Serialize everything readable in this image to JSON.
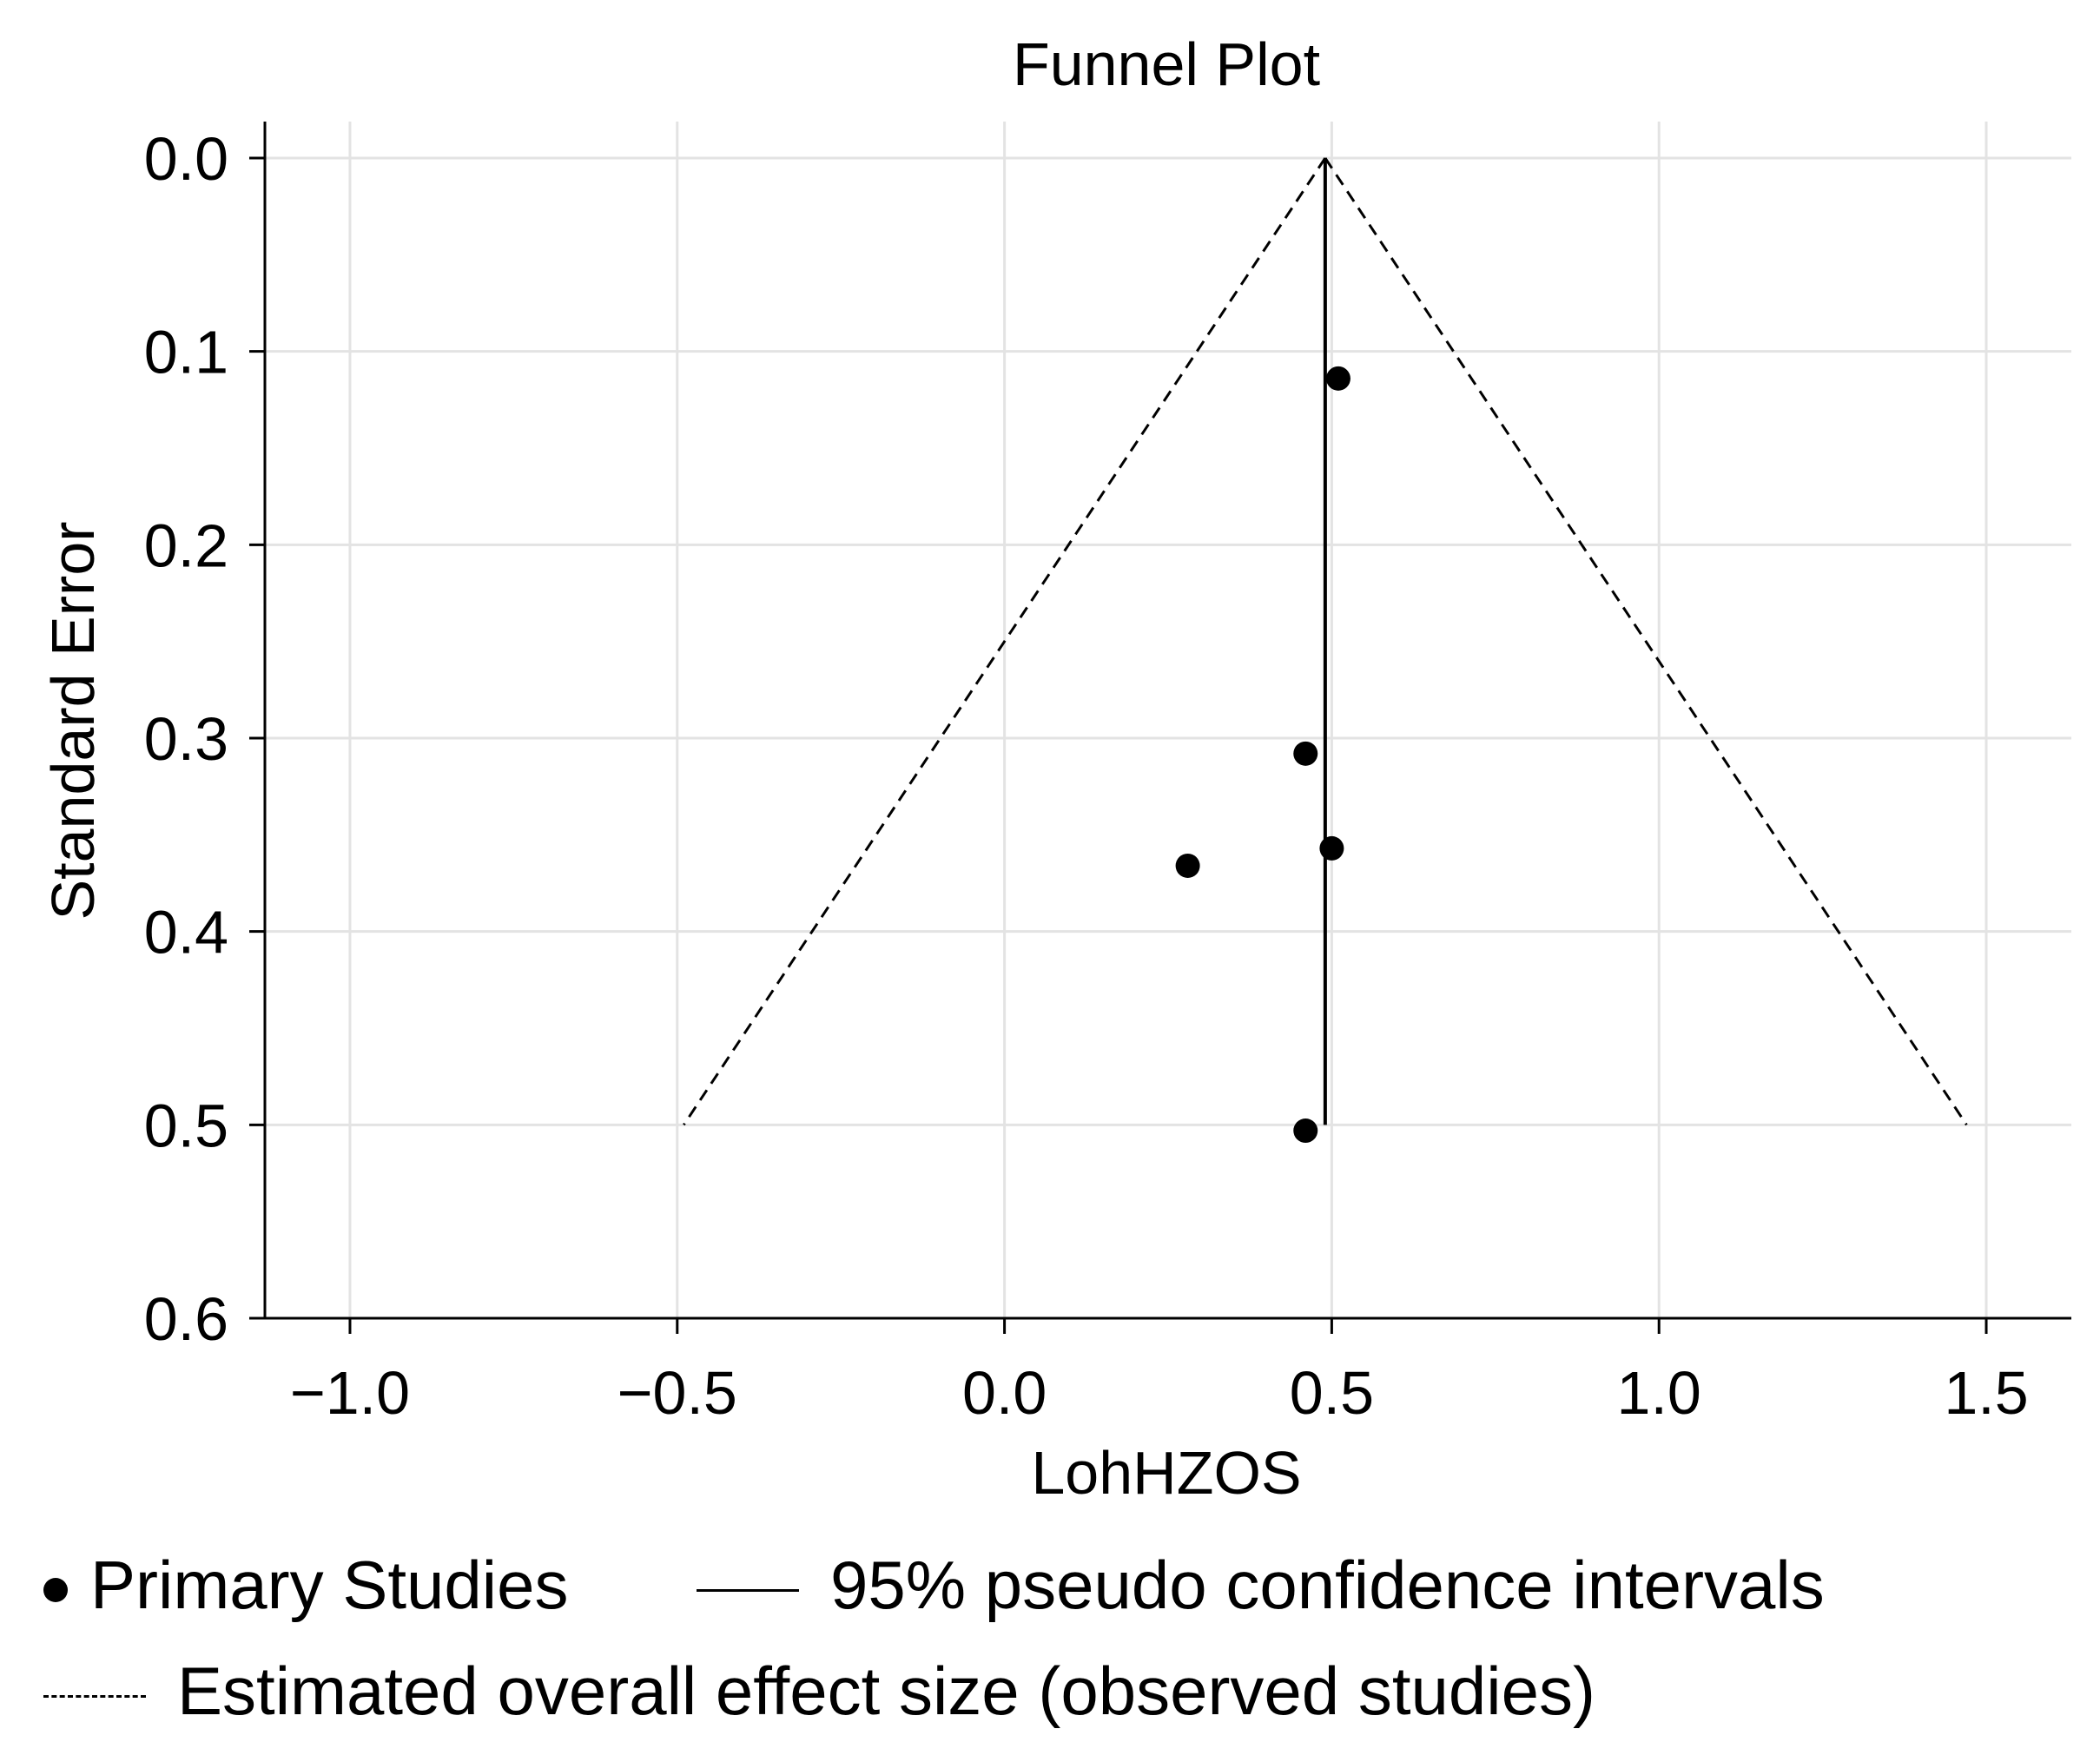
{
  "chart_data": {
    "type": "scatter",
    "title": "Funnel Plot",
    "xlabel": "LohHZOS",
    "ylabel": "Standard Error",
    "xlim": [
      -1.13,
      1.63
    ],
    "ylim": [
      0.6,
      0.0
    ],
    "y_inverted": true,
    "grid": true,
    "x_ticks": [
      -1.0,
      -0.5,
      0.0,
      0.5,
      1.0,
      1.5
    ],
    "x_tick_labels": [
      "−1.0",
      "−0.5",
      "0.0",
      "0.5",
      "1.0",
      "1.5"
    ],
    "y_ticks": [
      0.0,
      0.1,
      0.2,
      0.3,
      0.4,
      0.5,
      0.6
    ],
    "y_tick_labels": [
      "0.0",
      "0.1",
      "0.2",
      "0.3",
      "0.4",
      "0.5",
      "0.6"
    ],
    "points": [
      {
        "x": 0.51,
        "y": 0.114
      },
      {
        "x": 0.46,
        "y": 0.308
      },
      {
        "x": 0.5,
        "y": 0.357
      },
      {
        "x": 0.28,
        "y": 0.366
      },
      {
        "x": 0.46,
        "y": 0.503
      }
    ],
    "overall_effect": 0.49,
    "se_max": 0.5,
    "funnel": {
      "apex": [
        0.49,
        0.0
      ],
      "left": [
        -0.49,
        0.5
      ],
      "right": [
        1.47,
        0.5
      ]
    },
    "legend": {
      "placement": "below",
      "primary": "Primary Studies",
      "ci": "95% pseudo confidence intervals",
      "estimate": "Estimated overall effect size (observed studies)"
    }
  }
}
